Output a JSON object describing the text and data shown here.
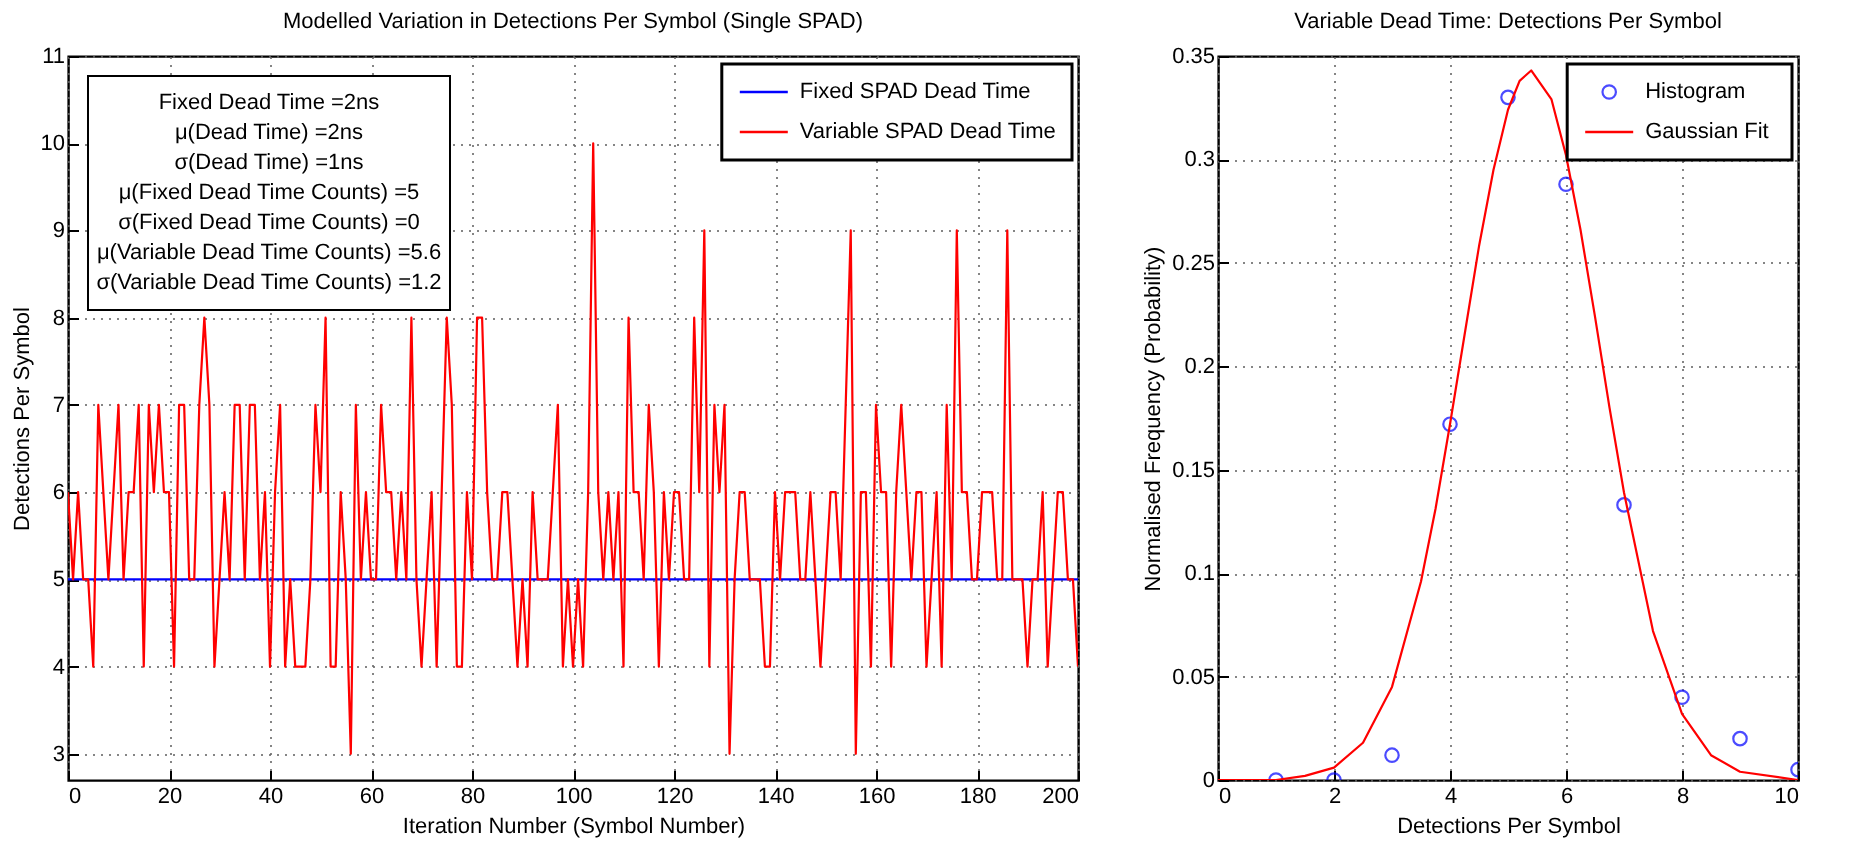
{
  "chart_data": [
    {
      "type": "line",
      "title": "Modelled Variation in Detections Per Symbol (Single SPAD)",
      "xlabel": "Iteration Number (Symbol Number)",
      "ylabel": "Detections Per Symbol",
      "x": [
        0,
        1,
        2,
        3,
        4,
        5,
        6,
        7,
        8,
        9,
        10,
        11,
        12,
        13,
        14,
        15,
        16,
        17,
        18,
        19,
        20,
        21,
        22,
        23,
        24,
        25,
        26,
        27,
        28,
        29,
        30,
        31,
        32,
        33,
        34,
        35,
        36,
        37,
        38,
        39,
        40,
        41,
        42,
        43,
        44,
        45,
        46,
        47,
        48,
        49,
        50,
        51,
        52,
        53,
        54,
        55,
        56,
        57,
        58,
        59,
        60,
        61,
        62,
        63,
        64,
        65,
        66,
        67,
        68,
        69,
        70,
        71,
        72,
        73,
        74,
        75,
        76,
        77,
        78,
        79,
        80,
        81,
        82,
        83,
        84,
        85,
        86,
        87,
        88,
        89,
        90,
        91,
        92,
        93,
        94,
        95,
        96,
        97,
        98,
        99,
        100,
        101,
        102,
        103,
        104,
        105,
        106,
        107,
        108,
        109,
        110,
        111,
        112,
        113,
        114,
        115,
        116,
        117,
        118,
        119,
        120,
        121,
        122,
        123,
        124,
        125,
        126,
        127,
        128,
        129,
        130,
        131,
        132,
        133,
        134,
        135,
        136,
        137,
        138,
        139,
        140,
        141,
        142,
        143,
        144,
        145,
        146,
        147,
        148,
        149,
        150,
        151,
        152,
        153,
        154,
        155,
        156,
        157,
        158,
        159,
        160,
        161,
        162,
        163,
        164,
        165,
        166,
        167,
        168,
        169,
        170,
        171,
        172,
        173,
        174,
        175,
        176,
        177,
        178,
        179,
        180,
        181,
        182,
        183,
        184,
        185,
        186,
        187,
        188,
        189,
        190,
        191,
        192,
        193,
        194,
        195,
        196,
        197,
        198,
        199,
        200
      ],
      "series": [
        {
          "name": "Fixed SPAD Dead Time",
          "color": "#0000ff",
          "x": [
            0,
            200
          ],
          "values": [
            5,
            5
          ]
        },
        {
          "name": "Variable SPAD Dead Time",
          "color": "#ff0000",
          "values": [
            6,
            5,
            6,
            5,
            5,
            4,
            7,
            6,
            5,
            6,
            7,
            5,
            6,
            6,
            7,
            4,
            7,
            6,
            7,
            6,
            6,
            4,
            7,
            7,
            5,
            5,
            7,
            8,
            7,
            4,
            5,
            6,
            5,
            7,
            7,
            5,
            7,
            7,
            5,
            6,
            4,
            6,
            7,
            4,
            5,
            4,
            4,
            4,
            5,
            7,
            6,
            8,
            4,
            4,
            6,
            5,
            3,
            7,
            5,
            6,
            5,
            5,
            7,
            6,
            6,
            5,
            6,
            5,
            8,
            5,
            4,
            5,
            6,
            4,
            6,
            8,
            7,
            4,
            4,
            6,
            5,
            8,
            8,
            6,
            5,
            5,
            6,
            6,
            5,
            4,
            5,
            4,
            6,
            5,
            5,
            5,
            6,
            7,
            4,
            5,
            4,
            5,
            4,
            6,
            10,
            6,
            5,
            6,
            5,
            6,
            4,
            8,
            6,
            6,
            5,
            7,
            6,
            4,
            6,
            5,
            6,
            6,
            5,
            5,
            8,
            6,
            9,
            4,
            7,
            6,
            7,
            3,
            5,
            6,
            6,
            5,
            5,
            5,
            4,
            4,
            6,
            5,
            6,
            6,
            6,
            5,
            5,
            6,
            5,
            4,
            5,
            6,
            6,
            5,
            7,
            9,
            3,
            6,
            6,
            4,
            7,
            6,
            6,
            4,
            6,
            7,
            6,
            5,
            6,
            6,
            4,
            5,
            6,
            4,
            7,
            5,
            9,
            6,
            6,
            5,
            5,
            6,
            6,
            6,
            5,
            5,
            9,
            5,
            5,
            5,
            4,
            5,
            5,
            6,
            4,
            5,
            6,
            6,
            5,
            5,
            4
          ]
        }
      ],
      "xlim": [
        0,
        200
      ],
      "xticks": [
        0,
        20,
        40,
        60,
        80,
        100,
        120,
        140,
        160,
        180,
        200
      ],
      "ylim": [
        2.7,
        11
      ],
      "yticks": [
        3,
        4,
        5,
        6,
        7,
        8,
        9,
        10,
        11
      ],
      "grid": true,
      "legend": "top right",
      "annotations": [
        "Fixed Dead Time =2ns",
        "μ(Dead Time) =2ns",
        "σ(Dead Time) =1ns",
        "μ(Fixed Dead Time Counts) =5",
        "σ(Fixed Dead Time Counts) =0",
        "μ(Variable Dead Time Counts) =5.6",
        "σ(Variable Dead Time Counts) =1.2"
      ]
    },
    {
      "type": "scatter",
      "title": "Variable Dead Time: Detections Per Symbol",
      "xlabel": "Detections Per Symbol",
      "ylabel": "Normalised Frequency (Probability)",
      "x": [
        1,
        2,
        3,
        4,
        5,
        6,
        7,
        8,
        9,
        10
      ],
      "series": [
        {
          "name": "Histogram",
          "color": "#0000ff",
          "marker": "circle",
          "values": [
            0,
            0,
            0.012,
            0.172,
            0.33,
            0.288,
            0.133,
            0.04,
            0.02,
            0.005
          ]
        },
        {
          "name": "Gaussian Fit",
          "type": "line",
          "color": "#ff0000",
          "x": [
            0,
            1,
            1.5,
            2,
            2.5,
            3,
            3.5,
            3.75,
            4,
            4.25,
            4.5,
            4.75,
            5,
            5.2,
            5.4,
            5.75,
            6,
            6.25,
            6.5,
            6.75,
            7,
            7.5,
            8,
            8.5,
            9,
            10
          ],
          "values": [
            0,
            0,
            0.002,
            0.006,
            0.018,
            0.045,
            0.096,
            0.131,
            0.172,
            0.215,
            0.258,
            0.295,
            0.324,
            0.338,
            0.343,
            0.329,
            0.302,
            0.266,
            0.224,
            0.18,
            0.139,
            0.072,
            0.032,
            0.012,
            0.004,
            0
          ]
        }
      ],
      "xlim": [
        0,
        10
      ],
      "xticks": [
        0,
        2,
        4,
        6,
        8,
        10
      ],
      "ylim": [
        0,
        0.35
      ],
      "yticks": [
        0,
        0.05,
        0.1,
        0.15,
        0.2,
        0.25,
        0.3,
        0.35
      ],
      "grid": true,
      "legend": "top right"
    }
  ]
}
